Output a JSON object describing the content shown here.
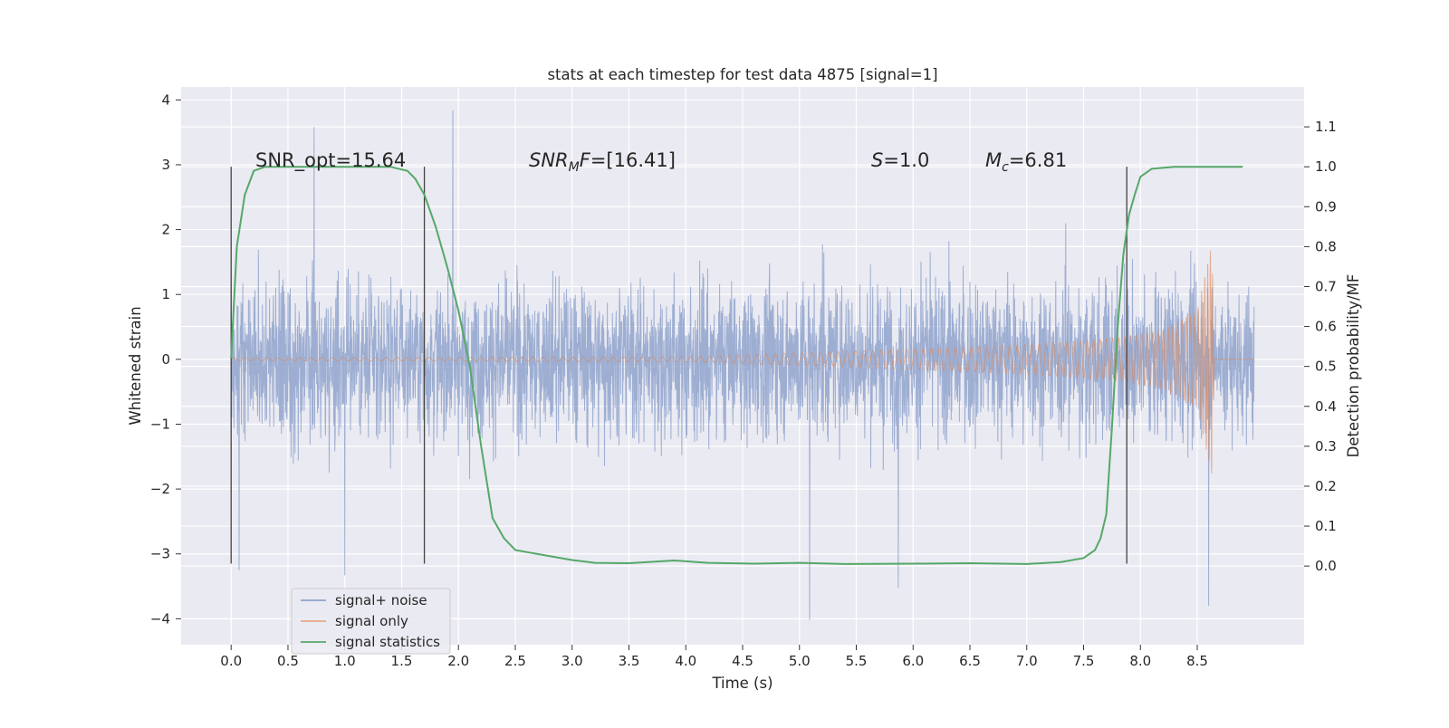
{
  "chart_data": {
    "type": "line",
    "title": "stats at each timestep for test data 4875 [signal=1]",
    "xlabel": "Time (s)",
    "ylabel_left": "Whitened strain",
    "ylabel_right": "Detection probability/MF",
    "xlim": [
      -0.44,
      9.44
    ],
    "ylim_left": [
      -4.4,
      4.2
    ],
    "ylim_right": [
      -0.197,
      1.2
    ],
    "x_ticks": [
      0.0,
      0.5,
      1.0,
      1.5,
      2.0,
      2.5,
      3.0,
      3.5,
      4.0,
      4.5,
      5.0,
      5.5,
      6.0,
      6.5,
      7.0,
      7.5,
      8.0,
      8.5
    ],
    "x_tick_labels": [
      "0.0",
      "0.5",
      "1.0",
      "1.5",
      "2.0",
      "2.5",
      "3.0",
      "3.5",
      "4.0",
      "4.5",
      "5.0",
      "5.5",
      "6.0",
      "6.5",
      "7.0",
      "7.5",
      "8.0",
      "8.5"
    ],
    "y_left_ticks": [
      4,
      3,
      2,
      1,
      0,
      -1,
      -2,
      -3,
      -4
    ],
    "y_left_tick_labels": [
      "4",
      "3",
      "2",
      "1",
      "0",
      "−1",
      "−2",
      "−3",
      "−4"
    ],
    "y_right_ticks": [
      1.1,
      1.0,
      0.9,
      0.8,
      0.7,
      0.6,
      0.5,
      0.4,
      0.3,
      0.2,
      0.1,
      0.0
    ],
    "y_right_tick_labels": [
      "1.1",
      "1.0",
      "0.9",
      "0.8",
      "0.7",
      "0.6",
      "0.5",
      "0.4",
      "0.3",
      "0.2",
      "0.1",
      "0.0"
    ],
    "grid": true,
    "series": [
      {
        "name": "signal+ noise",
        "color": "#8fa3cd",
        "style": "dense noisy whitened strain, amplitude roughly ±1 with peaks to ±3.8",
        "x_range": [
          0.0,
          9.0
        ],
        "sample_peaks": [
          {
            "x": 0.07,
            "y": -3.25
          },
          {
            "x": 0.73,
            "y": 3.58
          },
          {
            "x": 1.0,
            "y": -3.33
          },
          {
            "x": 1.95,
            "y": 3.84
          },
          {
            "x": 5.09,
            "y": -4.02
          },
          {
            "x": 5.87,
            "y": -3.52
          },
          {
            "x": 8.6,
            "y": -3.8
          }
        ]
      },
      {
        "name": "signal only",
        "color": "#dd8452",
        "style": "chirp waveform with growing envelope",
        "x_range": [
          0.0,
          9.0
        ],
        "envelope": [
          {
            "x": 0.0,
            "y": 0.02
          },
          {
            "x": 4.0,
            "y": 0.04
          },
          {
            "x": 5.0,
            "y": 0.1
          },
          {
            "x": 6.0,
            "y": 0.16
          },
          {
            "x": 7.0,
            "y": 0.23
          },
          {
            "x": 7.8,
            "y": 0.33
          },
          {
            "x": 8.2,
            "y": 0.45
          },
          {
            "x": 8.5,
            "y": 0.75
          },
          {
            "x": 8.63,
            "y": 1.8
          },
          {
            "x": 8.65,
            "y": 0.0
          },
          {
            "x": 9.0,
            "y": 0.0
          }
        ]
      },
      {
        "name": "signal statistics",
        "color": "#55a868",
        "axis": "right",
        "x": [
          0.0,
          0.05,
          0.12,
          0.2,
          0.3,
          0.5,
          0.8,
          1.0,
          1.2,
          1.4,
          1.55,
          1.62,
          1.7,
          1.8,
          1.9,
          2.0,
          2.1,
          2.2,
          2.3,
          2.4,
          2.5,
          2.6,
          2.8,
          3.0,
          3.2,
          3.5,
          3.9,
          4.2,
          4.6,
          5.0,
          5.4,
          6.0,
          6.5,
          7.0,
          7.3,
          7.5,
          7.6,
          7.65,
          7.7,
          7.75,
          7.8,
          7.85,
          7.9,
          7.95,
          8.0,
          8.1,
          8.3,
          8.6,
          8.9
        ],
        "values": [
          0.52,
          0.8,
          0.93,
          0.99,
          1.0,
          1.0,
          1.0,
          1.0,
          1.0,
          1.0,
          0.99,
          0.97,
          0.93,
          0.85,
          0.75,
          0.64,
          0.5,
          0.3,
          0.12,
          0.07,
          0.04,
          0.035,
          0.025,
          0.015,
          0.008,
          0.007,
          0.014,
          0.008,
          0.006,
          0.008,
          0.005,
          0.006,
          0.007,
          0.005,
          0.01,
          0.02,
          0.04,
          0.07,
          0.13,
          0.35,
          0.6,
          0.78,
          0.88,
          0.93,
          0.975,
          0.995,
          1.0,
          1.0,
          1.0
        ]
      }
    ],
    "vertical_markers": [
      {
        "x": 0.0,
        "y_range": [
          -3.15,
          2.97
        ]
      },
      {
        "x": 1.7,
        "y_range": [
          -3.15,
          2.97
        ]
      },
      {
        "x": 7.88,
        "y_range": [
          -3.15,
          2.97
        ]
      }
    ],
    "annotations": {
      "snr_opt": "SNR_opt=15.64",
      "snr_mf_base": "SNR",
      "snr_mf_sub": "M",
      "snr_mf_tail": "F",
      "snr_mf_value": "=[16.41]",
      "s_symbol": "S",
      "s_value": "=1.0",
      "mc_symbol": "M",
      "mc_sub": "c",
      "mc_value": "=6.81"
    },
    "legend": {
      "location": "lower-left",
      "entries": [
        "signal+ noise",
        "signal only",
        "signal statistics"
      ]
    }
  },
  "colors": {
    "plot_background": "#eaeaf2",
    "grid": "#ffffff",
    "noise": "#8fa3cd",
    "signal": "#dd8452",
    "statistics": "#55a868",
    "marker": "#444444"
  }
}
